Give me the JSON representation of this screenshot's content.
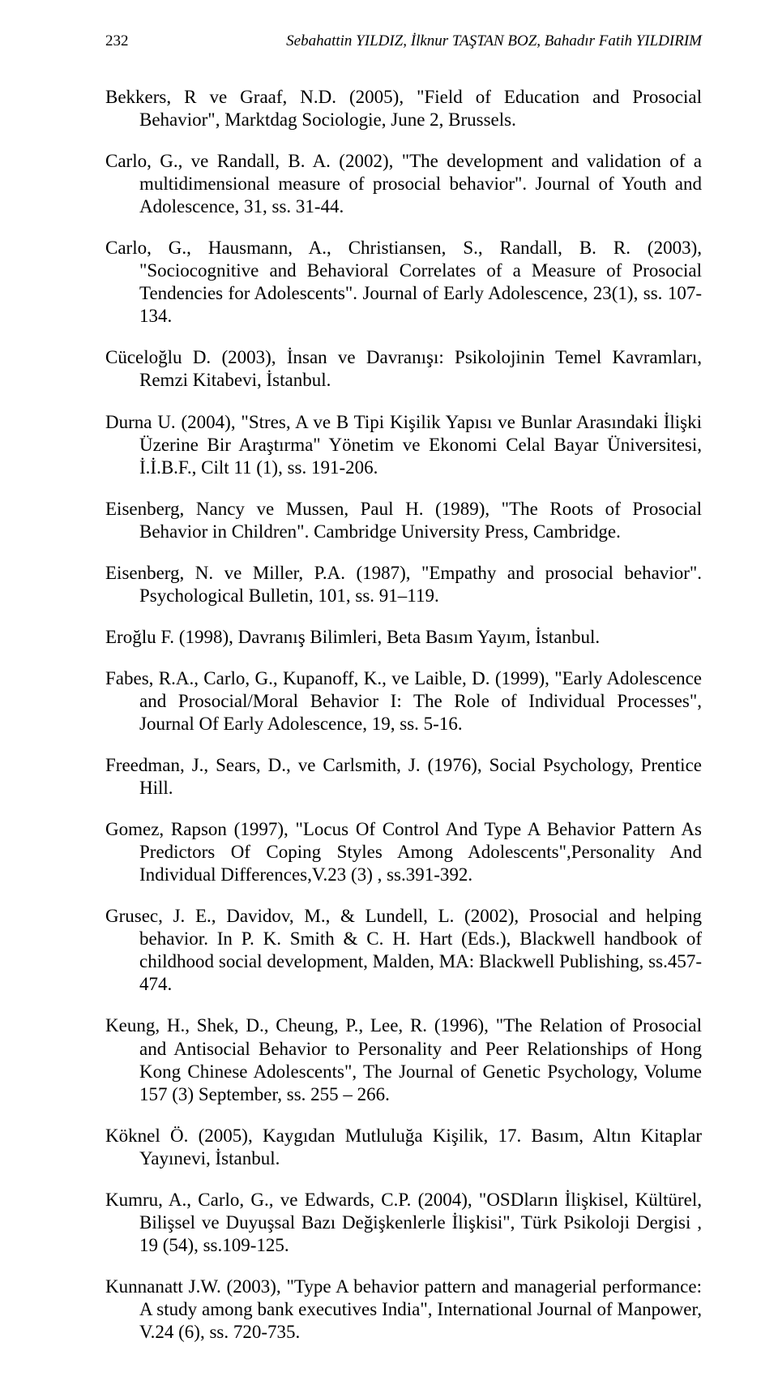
{
  "header": {
    "page_number": "232",
    "authors": "Sebahattin YILDIZ, İlknur TAŞTAN BOZ, Bahadır Fatih YILDIRIM"
  },
  "references": [
    "Bekkers, R ve Graaf, N.D. (2005), \"Field of Education and Prosocial Behavior\", Marktdag Sociologie, June 2, Brussels.",
    "Carlo, G., ve Randall, B. A. (2002), \"The development and validation of a multidimensional measure   of prosocial behavior\". Journal of Youth and Adolescence, 31, ss. 31-44.",
    "Carlo, G., Hausmann, A., Christiansen, S., Randall, B. R. (2003), \"Sociocognitive and Behavioral Correlates of a Measure of Prosocial Tendencies for Adolescents\". Journal of Early Adolescence, 23(1), ss. 107-134.",
    "Cüceloğlu D. (2003), İnsan ve Davranışı: Psikolojinin Temel Kavramları, Remzi Kitabevi, İstanbul.",
    "Durna U. (2004), \"Stres, A ve B Tipi Kişilik Yapısı ve Bunlar Arasındaki İlişki Üzerine Bir Araştırma\"      Yönetim ve Ekonomi Celal Bayar Üniversitesi, İ.İ.B.F., Cilt 11 (1), ss. 191-206.",
    "Eisenberg, Nancy ve Mussen, Paul H. (1989), \"The Roots of Prosocial Behavior in Children\". Cambridge University Press, Cambridge.",
    "Eisenberg, N. ve Miller, P.A. (1987), \"Empathy and prosocial behavior\". Psychological Bulletin,            101, ss. 91–119.",
    "Eroğlu F. (1998), Davranış Bilimleri, Beta Basım Yayım, İstanbul.",
    "Fabes, R.A., Carlo, G., Kupanoff, K., ve Laible, D. (1999), \"Early Adolescence and   Prosocial/Moral Behavior I: The Role of Individual Processes\", Journal Of Early Adolescence, 19, ss. 5-16.",
    "Freedman, J., Sears, D., ve Carlsmith, J. (1976), Social Psychology, Prentice Hill.",
    "Gomez, Rapson (1997), \"Locus Of Control And Type A Behavior Pattern As Predictors Of Coping Styles  Among Adolescents\",Personality And Individual Differences,V.23 (3) , ss.391-392.",
    "Grusec, J. E., Davidov, M., & Lundell, L. (2002), Prosocial and helping behavior. In P. K. Smith & C. H. Hart (Eds.), Blackwell handbook of childhood social development, Malden, MA: Blackwell Publishing, ss.457-474.",
    "Keung, H., Shek, D., Cheung, P., Lee, R. (1996), \"The Relation of Prosocial and Antisocial Behavior           to Personality and Peer Relationships of Hong Kong Chinese Adolescents\", The Journal of      Genetic Psychology, Volume 157 (3)  September, ss. 255 – 266.",
    "Köknel Ö. (2005), Kaygıdan Mutluluğa Kişilik, 17. Basım, Altın Kitaplar Yayınevi, İstanbul.",
    "Kumru, A., Carlo, G., ve Edwards, C.P. (2004), \"OSDların İlişkisel, Kültürel, Bilişsel ve Duyuşsal Bazı Değişkenlerle İlişkisi\", Türk Psikoloji Dergisi , 19 (54), ss.109-125.",
    "Kunnanatt J.W. (2003), \"Type A behavior pattern and managerial performance: A study among bank  executives  India\", International Journal of Manpower, V.24 (6), ss. 720-735."
  ]
}
